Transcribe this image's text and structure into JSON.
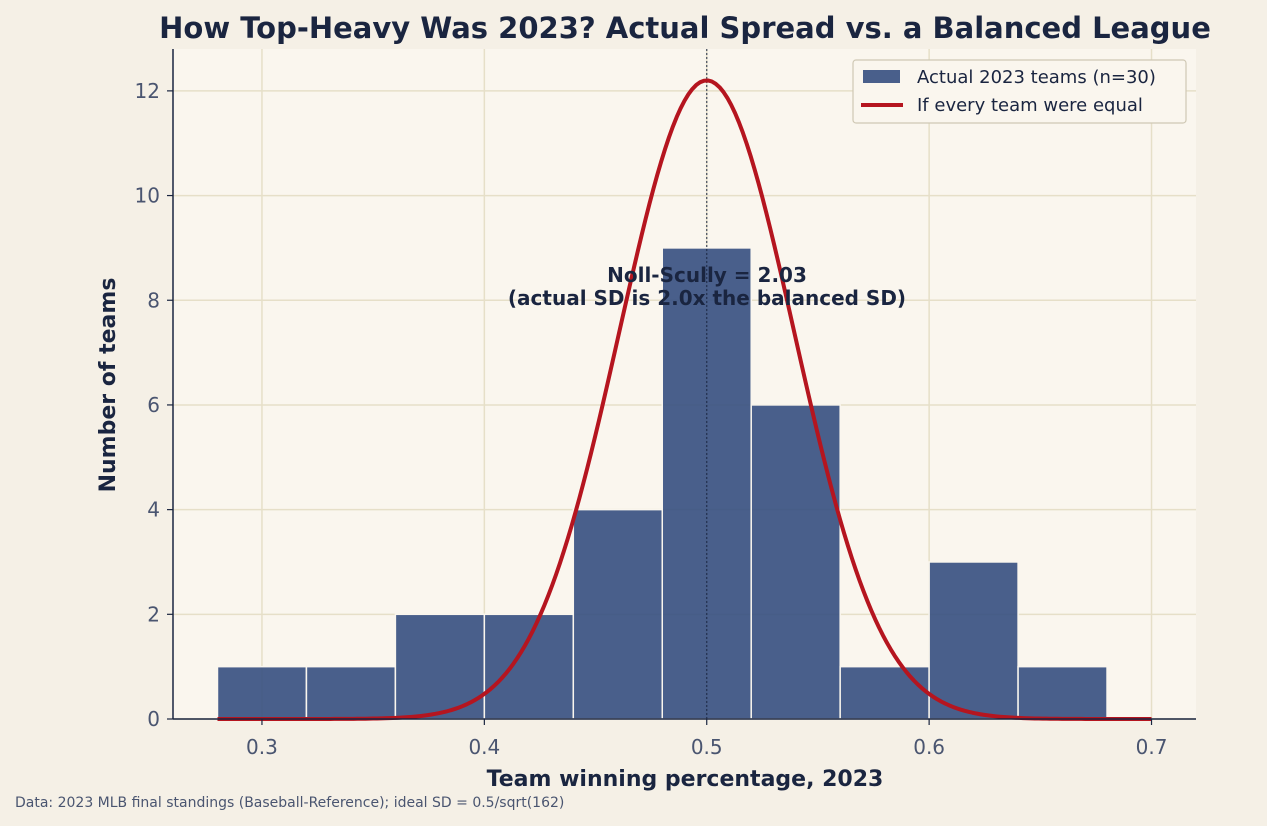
{
  "chart_data": {
    "type": "bar",
    "title": "How Top-Heavy Was 2023? Actual Spread vs. a Balanced League",
    "xlabel": "Team winning percentage, 2023",
    "ylabel": "Number of teams",
    "xlim": [
      0.26,
      0.72
    ],
    "ylim": [
      0,
      12.8
    ],
    "xticks": [
      0.3,
      0.4,
      0.5,
      0.6,
      0.7
    ],
    "xtick_labels": [
      "0.3",
      "0.4",
      "0.5",
      "0.6",
      "0.7"
    ],
    "yticks": [
      0,
      2,
      4,
      6,
      8,
      10,
      12
    ],
    "ytick_labels": [
      "0",
      "2",
      "4",
      "6",
      "8",
      "10",
      "12"
    ],
    "grid": true,
    "legend_position": "top-right",
    "bins": [
      {
        "x0": 0.28,
        "x1": 0.32,
        "count": 1
      },
      {
        "x0": 0.32,
        "x1": 0.36,
        "count": 1
      },
      {
        "x0": 0.36,
        "x1": 0.4,
        "count": 2
      },
      {
        "x0": 0.4,
        "x1": 0.44,
        "count": 2
      },
      {
        "x0": 0.44,
        "x1": 0.48,
        "count": 4
      },
      {
        "x0": 0.48,
        "x1": 0.52,
        "count": 9
      },
      {
        "x0": 0.52,
        "x1": 0.56,
        "count": 6
      },
      {
        "x0": 0.56,
        "x1": 0.6,
        "count": 1
      },
      {
        "x0": 0.6,
        "x1": 0.64,
        "count": 3
      },
      {
        "x0": 0.64,
        "x1": 0.68,
        "count": 1
      }
    ],
    "series": [
      {
        "name": "Actual 2023 teams (n=30)",
        "kind": "histogram",
        "color": "#354f80"
      },
      {
        "name": "If every team were equal",
        "kind": "normal-curve",
        "mean": 0.5,
        "sd": 0.0393,
        "peak": 12.2,
        "x_range": [
          0.28,
          0.7
        ],
        "color": "#b5151f"
      }
    ],
    "reference_line": {
      "x": 0.5,
      "style": "dotted"
    },
    "annotation": {
      "line1": "Noll-Scully = 2.03",
      "line2": "(actual SD is 2.0x the balanced SD)"
    },
    "source": "Data: 2023 MLB final standings (Baseball-Reference); ideal SD = 0.5/sqrt(162)"
  },
  "colors": {
    "background": "#f5f0e6",
    "plot_background": "#faf6ee",
    "grid": "#e6dfc8",
    "bar": "#354f80",
    "curve": "#b5151f",
    "text_dark": "#1a2540",
    "tick_text": "#4a5570"
  }
}
